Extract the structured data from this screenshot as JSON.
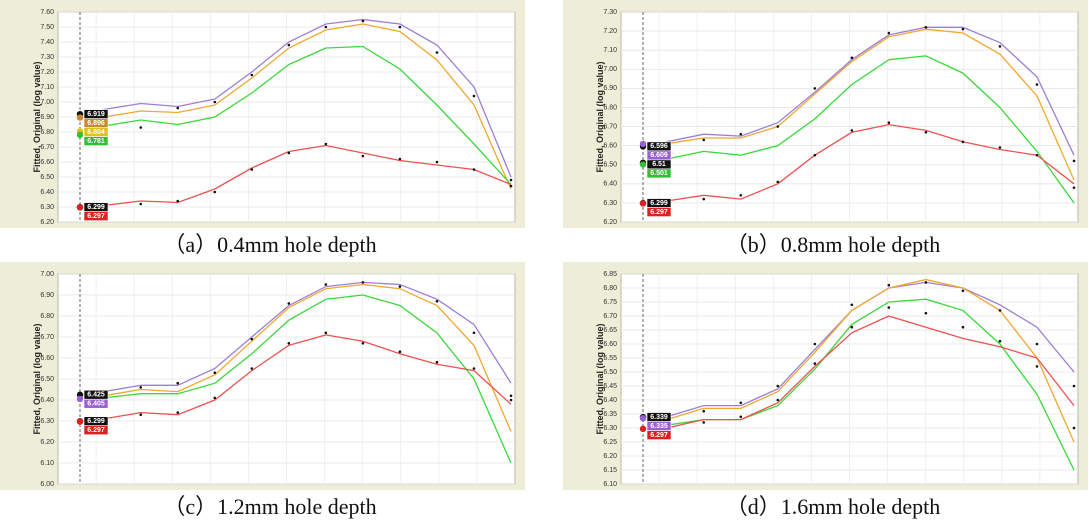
{
  "chart_data": [
    {
      "type": "line",
      "caption": "（a）0.4mm hole depth",
      "ylabel": "Fitted, Original (log value)",
      "categories": [
        null,
        null,
        null,
        null,
        null,
        null,
        null,
        null,
        null,
        null,
        null,
        null
      ],
      "ylim": [
        6.2,
        7.6
      ],
      "yticks": [
        {
          "value": 6.2,
          "label": "6.20"
        },
        {
          "value": 6.3,
          "label": "6.30"
        },
        {
          "value": 6.4,
          "label": "6.40"
        },
        {
          "value": 6.5,
          "label": "6.50"
        },
        {
          "value": 6.6,
          "label": "6.60"
        },
        {
          "value": 6.7,
          "label": "6.70"
        },
        {
          "value": 6.8,
          "label": "6.80"
        },
        {
          "value": 6.9,
          "label": "6.90"
        },
        {
          "value": 7.0,
          "label": "7.00"
        },
        {
          "value": 7.1,
          "label": "7.10"
        },
        {
          "value": 7.2,
          "label": "7.20"
        },
        {
          "value": 7.3,
          "label": "7.30"
        },
        {
          "value": 7.4,
          "label": "7.40"
        },
        {
          "value": 7.5,
          "label": "7.50"
        },
        {
          "value": 7.6,
          "label": "7.60"
        }
      ],
      "grid": true,
      "series": [
        {
          "color": "#9b7fd4",
          "values": [
            6.95,
            6.99,
            6.97,
            7.02,
            7.2,
            7.4,
            7.52,
            7.55,
            7.52,
            7.38,
            7.1,
            6.5
          ]
        },
        {
          "color": "#f0a830",
          "values": [
            6.9,
            6.94,
            6.93,
            6.98,
            7.16,
            7.36,
            7.48,
            7.52,
            7.47,
            7.28,
            6.98,
            6.42
          ]
        },
        {
          "color": "#3ad83a",
          "values": [
            6.84,
            6.88,
            6.85,
            6.9,
            7.06,
            7.25,
            7.36,
            7.37,
            7.22,
            6.98,
            6.72,
            6.45
          ]
        },
        {
          "color": "#f05050",
          "values": [
            6.31,
            6.34,
            6.33,
            6.42,
            6.56,
            6.67,
            6.71,
            6.66,
            6.61,
            6.58,
            6.55,
            6.45
          ]
        },
        {
          "color": "#111111",
          "mode": "markers",
          "values": [
            6.92,
            6.83,
            6.96,
            7.0,
            7.18,
            7.38,
            7.5,
            7.54,
            7.5,
            7.33,
            7.04,
            6.48
          ]
        },
        {
          "color": "#111111",
          "mode": "markers",
          "values": [
            6.3,
            6.32,
            6.34,
            6.4,
            6.55,
            6.66,
            6.72,
            6.64,
            6.62,
            6.6,
            6.55,
            6.44
          ]
        }
      ],
      "point_labels": [
        {
          "value": 6.919,
          "color": "#111111"
        },
        {
          "value": 6.896,
          "color": "#c98a2a"
        },
        {
          "value": 6.804,
          "color": "#e0c020"
        },
        {
          "value": 6.781,
          "color": "#30c030"
        },
        {
          "value": 6.299,
          "color": "#111111"
        },
        {
          "value": 6.297,
          "color": "#e02020"
        }
      ]
    },
    {
      "type": "line",
      "caption": "（b）0.8mm hole depth",
      "ylabel": "Fitted, Original (log value)",
      "categories": [
        null,
        null,
        null,
        null,
        null,
        null,
        null,
        null,
        null,
        null,
        null,
        null
      ],
      "ylim": [
        6.2,
        7.3
      ],
      "yticks": [
        {
          "value": 6.2,
          "label": "6.20"
        },
        {
          "value": 6.3,
          "label": "6.30"
        },
        {
          "value": 6.4,
          "label": "6.40"
        },
        {
          "value": 6.5,
          "label": "6.50"
        },
        {
          "value": 6.6,
          "label": "6.60"
        },
        {
          "value": 6.7,
          "label": "6.70"
        },
        {
          "value": 6.8,
          "label": "6.80"
        },
        {
          "value": 6.9,
          "label": "6.90"
        },
        {
          "value": 7.0,
          "label": "7.00"
        },
        {
          "value": 7.1,
          "label": "7.10"
        },
        {
          "value": 7.2,
          "label": "7.20"
        },
        {
          "value": 7.3,
          "label": "7.30"
        }
      ],
      "grid": true,
      "series": [
        {
          "color": "#9b7fd4",
          "values": [
            6.62,
            6.66,
            6.65,
            6.72,
            6.88,
            7.05,
            7.18,
            7.22,
            7.22,
            7.14,
            6.96,
            6.55
          ]
        },
        {
          "color": "#f0a830",
          "values": [
            6.61,
            6.64,
            6.64,
            6.7,
            6.87,
            7.04,
            7.17,
            7.21,
            7.19,
            7.08,
            6.86,
            6.42
          ]
        },
        {
          "color": "#3ad83a",
          "values": [
            6.53,
            6.57,
            6.55,
            6.6,
            6.74,
            6.92,
            7.05,
            7.07,
            6.98,
            6.8,
            6.57,
            6.3
          ]
        },
        {
          "color": "#f05050",
          "values": [
            6.31,
            6.34,
            6.32,
            6.4,
            6.55,
            6.67,
            6.71,
            6.68,
            6.62,
            6.58,
            6.55,
            6.4
          ]
        },
        {
          "color": "#111111",
          "mode": "markers",
          "values": [
            6.6,
            6.63,
            6.66,
            6.7,
            6.9,
            7.06,
            7.19,
            7.22,
            7.21,
            7.12,
            6.92,
            6.52
          ]
        },
        {
          "color": "#111111",
          "mode": "markers",
          "values": [
            6.3,
            6.32,
            6.34,
            6.41,
            6.55,
            6.68,
            6.72,
            6.67,
            6.62,
            6.59,
            6.55,
            6.38
          ]
        }
      ],
      "point_labels": [
        {
          "value": 6.596,
          "color": "#111111"
        },
        {
          "value": 6.609,
          "color": "#9b5fd4"
        },
        {
          "value": 6.51,
          "color": "#111111"
        },
        {
          "value": 6.501,
          "color": "#30c030"
        },
        {
          "value": 6.299,
          "color": "#111111"
        },
        {
          "value": 6.297,
          "color": "#e02020"
        }
      ]
    },
    {
      "type": "line",
      "caption": "（c）1.2mm hole depth",
      "ylabel": "Fitted, Original (log value)",
      "categories": [
        null,
        null,
        null,
        null,
        null,
        null,
        null,
        null,
        null,
        null,
        null,
        null
      ],
      "ylim": [
        6.0,
        7.0
      ],
      "yticks": [
        {
          "value": 6.0,
          "label": "6.00"
        },
        {
          "value": 6.1,
          "label": "6.10"
        },
        {
          "value": 6.2,
          "label": "6.20"
        },
        {
          "value": 6.3,
          "label": "6.30"
        },
        {
          "value": 6.4,
          "label": "6.40"
        },
        {
          "value": 6.5,
          "label": "6.50"
        },
        {
          "value": 6.6,
          "label": "6.60"
        },
        {
          "value": 6.7,
          "label": "6.70"
        },
        {
          "value": 6.8,
          "label": "6.80"
        },
        {
          "value": 6.9,
          "label": "6.90"
        },
        {
          "value": 7.0,
          "label": "7.00"
        }
      ],
      "grid": true,
      "series": [
        {
          "color": "#9b7fd4",
          "values": [
            6.44,
            6.47,
            6.47,
            6.55,
            6.7,
            6.85,
            6.94,
            6.96,
            6.95,
            6.88,
            6.76,
            6.48
          ]
        },
        {
          "color": "#f0a830",
          "values": [
            6.42,
            6.45,
            6.44,
            6.52,
            6.68,
            6.84,
            6.93,
            6.95,
            6.93,
            6.85,
            6.66,
            6.25
          ]
        },
        {
          "color": "#3ad83a",
          "values": [
            6.41,
            6.43,
            6.43,
            6.48,
            6.62,
            6.78,
            6.88,
            6.9,
            6.85,
            6.72,
            6.5,
            6.1
          ]
        },
        {
          "color": "#f05050",
          "values": [
            6.31,
            6.34,
            6.33,
            6.4,
            6.54,
            6.66,
            6.71,
            6.68,
            6.62,
            6.57,
            6.54,
            6.38
          ]
        },
        {
          "color": "#111111",
          "mode": "markers",
          "values": [
            6.42,
            6.46,
            6.48,
            6.53,
            6.69,
            6.86,
            6.95,
            6.96,
            6.94,
            6.87,
            6.72,
            6.42
          ]
        },
        {
          "color": "#111111",
          "mode": "markers",
          "values": [
            6.3,
            6.33,
            6.34,
            6.41,
            6.55,
            6.67,
            6.72,
            6.67,
            6.63,
            6.58,
            6.55,
            6.4
          ]
        }
      ],
      "point_labels": [
        {
          "value": 6.425,
          "color": "#111111"
        },
        {
          "value": 6.405,
          "color": "#9b5fd4"
        },
        {
          "value": 6.299,
          "color": "#111111"
        },
        {
          "value": 6.297,
          "color": "#e02020"
        }
      ]
    },
    {
      "type": "line",
      "caption": "（d）1.6mm hole depth",
      "ylabel": "Fitted, Original (log value)",
      "categories": [
        null,
        null,
        null,
        null,
        null,
        null,
        null,
        null,
        null,
        null,
        null,
        null
      ],
      "ylim": [
        6.1,
        6.85
      ],
      "yticks": [
        {
          "value": 6.1,
          "label": "6.10"
        },
        {
          "value": 6.15,
          "label": "6.15"
        },
        {
          "value": 6.2,
          "label": "6.20"
        },
        {
          "value": 6.25,
          "label": "6.25"
        },
        {
          "value": 6.3,
          "label": "6.30"
        },
        {
          "value": 6.35,
          "label": "6.35"
        },
        {
          "value": 6.4,
          "label": "6.40"
        },
        {
          "value": 6.45,
          "label": "6.45"
        },
        {
          "value": 6.5,
          "label": "6.50"
        },
        {
          "value": 6.55,
          "label": "6.55"
        },
        {
          "value": 6.6,
          "label": "6.60"
        },
        {
          "value": 6.65,
          "label": "6.65"
        },
        {
          "value": 6.7,
          "label": "6.70"
        },
        {
          "value": 6.75,
          "label": "6.75"
        },
        {
          "value": 6.8,
          "label": "6.80"
        },
        {
          "value": 6.85,
          "label": "6.85"
        }
      ],
      "grid": true,
      "series": [
        {
          "color": "#9b7fd4",
          "values": [
            6.34,
            6.38,
            6.38,
            6.44,
            6.58,
            6.72,
            6.8,
            6.82,
            6.8,
            6.74,
            6.66,
            6.5
          ]
        },
        {
          "color": "#f0a830",
          "values": [
            6.33,
            6.37,
            6.37,
            6.43,
            6.57,
            6.72,
            6.8,
            6.83,
            6.8,
            6.72,
            6.55,
            6.25
          ]
        },
        {
          "color": "#3ad83a",
          "values": [
            6.31,
            6.33,
            6.33,
            6.38,
            6.51,
            6.67,
            6.75,
            6.76,
            6.72,
            6.6,
            6.42,
            6.15
          ]
        },
        {
          "color": "#f05050",
          "values": [
            6.3,
            6.33,
            6.33,
            6.39,
            6.52,
            6.64,
            6.7,
            6.66,
            6.62,
            6.59,
            6.55,
            6.38
          ]
        },
        {
          "color": "#111111",
          "mode": "markers",
          "values": [
            6.33,
            6.36,
            6.39,
            6.45,
            6.6,
            6.74,
            6.81,
            6.82,
            6.79,
            6.72,
            6.6,
            6.45
          ]
        },
        {
          "color": "#111111",
          "mode": "markers",
          "values": [
            6.31,
            6.32,
            6.34,
            6.4,
            6.53,
            6.66,
            6.73,
            6.71,
            6.66,
            6.61,
            6.52,
            6.3
          ]
        }
      ],
      "point_labels": [
        {
          "value": 6.339,
          "color": "#111111"
        },
        {
          "value": 6.335,
          "color": "#9b5fd4"
        },
        {
          "value": 6.297,
          "color": "#e02020"
        }
      ]
    }
  ]
}
